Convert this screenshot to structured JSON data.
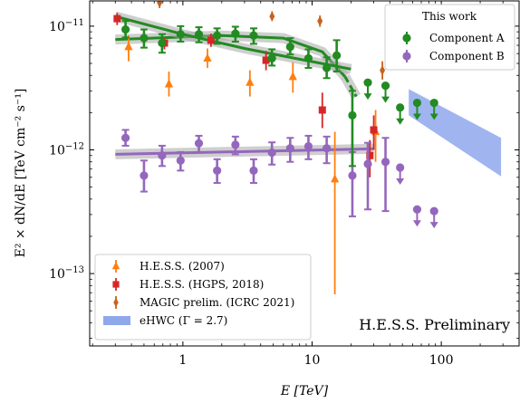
{
  "chart_data": {
    "type": "scatter",
    "xlabel": "E [TeV]",
    "ylabel": "E² × dN/dE [TeV cm⁻² s⁻¹]",
    "x_scale": "log",
    "y_scale": "log",
    "xlim": [
      0.19,
      400
    ],
    "ylim": [
      2.6e-14,
      1.6e-11
    ],
    "x_ticks": [
      {
        "v": 1,
        "label": "1"
      },
      {
        "v": 10,
        "label": "10"
      },
      {
        "v": 100,
        "label": "100"
      }
    ],
    "y_ticks": [
      {
        "v": 1e-13,
        "base": "10",
        "exp": "−13"
      },
      {
        "v": 1e-12,
        "base": "10",
        "exp": "−12"
      },
      {
        "v": 1e-11,
        "base": "10",
        "exp": "−11"
      }
    ],
    "annotation": "H.E.S.S. Preliminary",
    "legend_top": {
      "title": "This work",
      "placement": "top-right",
      "entries": [
        {
          "label": "Component A",
          "color": "#228b22",
          "marker": "circle"
        },
        {
          "label": "Component B",
          "color": "#9467bd",
          "marker": "circle"
        }
      ]
    },
    "legend_bottom": {
      "placement": "lower-left",
      "entries": [
        {
          "label": "H.E.S.S. (2007)",
          "color": "#ff7f0e",
          "marker": "triangle"
        },
        {
          "label": "H.E.S.S. (HGPS, 2018)",
          "color": "#d62728",
          "marker": "square"
        },
        {
          "label": "MAGIC prelim. (ICRC 2021)",
          "color": "#c8621c",
          "marker": "diamond"
        },
        {
          "label": "eHWC (Γ = 2.7)",
          "color": "#8fa8ec",
          "marker": "band"
        }
      ]
    },
    "series": [
      {
        "name": "Component A",
        "color": "#228b22",
        "marker": "circle",
        "points": [
          {
            "x": 0.36,
            "y": 9.4e-12,
            "lo": 8.1e-12,
            "hi": 1.1e-11
          },
          {
            "x": 0.5,
            "y": 8e-12,
            "lo": 6.7e-12,
            "hi": 9.4e-12
          },
          {
            "x": 0.69,
            "y": 7.3e-12,
            "lo": 6.1e-12,
            "hi": 8.6e-12
          },
          {
            "x": 0.96,
            "y": 8.6e-12,
            "lo": 7.5e-12,
            "hi": 1e-11
          },
          {
            "x": 1.33,
            "y": 8.6e-12,
            "lo": 7.4e-12,
            "hi": 9.8e-12
          },
          {
            "x": 1.84,
            "y": 8.4e-12,
            "lo": 7.2e-12,
            "hi": 9.6e-12
          },
          {
            "x": 2.55,
            "y": 8.7e-12,
            "lo": 7.5e-12,
            "hi": 9.9e-12
          },
          {
            "x": 3.53,
            "y": 8.4e-12,
            "lo": 7.2e-12,
            "hi": 9.6e-12
          },
          {
            "x": 4.89,
            "y": 5.5e-12,
            "lo": 4.8e-12,
            "hi": 6.5e-12
          },
          {
            "x": 6.77,
            "y": 6.8e-12,
            "lo": 5.9e-12,
            "hi": 8e-12
          },
          {
            "x": 9.37,
            "y": 5.5e-12,
            "lo": 4.6e-12,
            "hi": 6.5e-12
          },
          {
            "x": 12.97,
            "y": 4.6e-12,
            "lo": 3.8e-12,
            "hi": 5.6e-12
          },
          {
            "x": 15.5,
            "y": 5.8e-12,
            "lo": 4.3e-12,
            "hi": 7.7e-12
          },
          {
            "x": 20.5,
            "y": 1.9e-12,
            "lo": 7.4e-13,
            "hi": 3e-12
          }
        ],
        "upper_limits": [
          {
            "x": 27.0,
            "y": 3.5e-12
          },
          {
            "x": 37.0,
            "y": 3.3e-12
          },
          {
            "x": 48.0,
            "y": 2.2e-12
          },
          {
            "x": 65.0,
            "y": 2.4e-12
          },
          {
            "x": 88.0,
            "y": 2.4e-12
          }
        ],
        "fits": [
          {
            "x": [
              0.3,
              2,
              6,
              12,
              18
            ],
            "y": [
              7.8e-12,
              8.4e-12,
              8e-12,
              6.2e-12,
              3.9e-12
            ],
            "dashed": false
          },
          {
            "x": [
              18,
              22
            ],
            "y": [
              3.9e-12,
              2.7e-12
            ],
            "dashed": true
          },
          {
            "x": [
              0.3,
              1,
              3,
              8,
              20
            ],
            "y": [
              1.2e-11,
              8.6e-12,
              6.6e-12,
              5.4e-12,
              4.5e-12
            ],
            "dashed": false
          }
        ]
      },
      {
        "name": "Component B",
        "color": "#9467bd",
        "marker": "circle",
        "points": [
          {
            "x": 0.36,
            "y": 1.25e-12,
            "lo": 1.08e-12,
            "hi": 1.45e-12
          },
          {
            "x": 0.5,
            "y": 6.2e-13,
            "lo": 4.6e-13,
            "hi": 8.2e-13
          },
          {
            "x": 0.69,
            "y": 9e-13,
            "lo": 7.4e-13,
            "hi": 1.08e-12
          },
          {
            "x": 0.96,
            "y": 8.2e-13,
            "lo": 6.8e-13,
            "hi": 9.6e-13
          },
          {
            "x": 1.33,
            "y": 1.13e-12,
            "lo": 9.6e-13,
            "hi": 1.3e-12
          },
          {
            "x": 1.84,
            "y": 6.8e-13,
            "lo": 5.4e-13,
            "hi": 8.4e-13
          },
          {
            "x": 2.55,
            "y": 1.1e-12,
            "lo": 9.2e-13,
            "hi": 1.28e-12
          },
          {
            "x": 3.53,
            "y": 6.8e-13,
            "lo": 5.4e-13,
            "hi": 8.4e-13
          },
          {
            "x": 4.89,
            "y": 9.5e-13,
            "lo": 7.6e-13,
            "hi": 1.15e-12
          },
          {
            "x": 6.77,
            "y": 1.03e-12,
            "lo": 8e-13,
            "hi": 1.25e-12
          },
          {
            "x": 9.37,
            "y": 1.07e-12,
            "lo": 8.4e-13,
            "hi": 1.3e-12
          },
          {
            "x": 12.97,
            "y": 1.03e-12,
            "lo": 7.8e-13,
            "hi": 1.28e-12
          },
          {
            "x": 20.5,
            "y": 6.2e-13,
            "lo": 2.9e-13,
            "hi": 9.6e-13
          },
          {
            "x": 27.0,
            "y": 7.7e-13,
            "lo": 3.3e-13,
            "hi": 1.14e-12
          },
          {
            "x": 37.0,
            "y": 8e-13,
            "lo": 3.2e-13,
            "hi": 1.25e-12
          }
        ],
        "upper_limits": [
          {
            "x": 48.0,
            "y": 7.2e-13
          },
          {
            "x": 65.0,
            "y": 3.3e-13
          },
          {
            "x": 88.0,
            "y": 3.2e-13
          }
        ],
        "fits": [
          {
            "x": [
              0.3,
              30
            ],
            "y": [
              9.2e-13,
              1.02e-12
            ],
            "dashed": false
          }
        ]
      },
      {
        "name": "H.E.S.S. (2007)",
        "color": "#ff7f0e",
        "marker": "triangle",
        "points": [
          {
            "x": 0.38,
            "y": 6.8e-12,
            "lo": 5.2e-12,
            "hi": 8.4e-12
          },
          {
            "x": 0.78,
            "y": 3.4e-12,
            "lo": 2.7e-12,
            "hi": 4.3e-12
          },
          {
            "x": 1.55,
            "y": 5.5e-12,
            "lo": 4.6e-12,
            "hi": 6.6e-12
          },
          {
            "x": 3.3,
            "y": 3.5e-12,
            "lo": 2.7e-12,
            "hi": 4.4e-12
          },
          {
            "x": 7.1,
            "y": 3.9e-12,
            "lo": 2.9e-12,
            "hi": 5.1e-12
          },
          {
            "x": 15.0,
            "y": 5.8e-13,
            "lo": 6.8e-14,
            "hi": 1.4e-12
          },
          {
            "x": 31.0,
            "y": 1.4e-12,
            "lo": 8e-13,
            "hi": 2.1e-12
          }
        ]
      },
      {
        "name": "H.E.S.S. (HGPS, 2018)",
        "color": "#d62728",
        "marker": "square",
        "points": [
          {
            "x": 0.31,
            "y": 1.15e-11,
            "lo": 1.02e-11,
            "hi": 1.28e-11
          },
          {
            "x": 0.72,
            "y": 7.3e-12,
            "lo": 6.5e-12,
            "hi": 8.1e-12
          },
          {
            "x": 1.65,
            "y": 7.7e-12,
            "lo": 6.8e-12,
            "hi": 8.7e-12
          },
          {
            "x": 4.4,
            "y": 5.3e-12,
            "lo": 4.4e-12,
            "hi": 6.3e-12
          },
          {
            "x": 12.0,
            "y": 2.1e-12,
            "lo": 1.5e-12,
            "hi": 2.9e-12
          },
          {
            "x": 28.0,
            "y": 9e-13,
            "lo": 6e-13,
            "hi": 1.2e-12
          },
          {
            "x": 30.0,
            "y": 1.45e-12,
            "lo": 1e-12,
            "hi": 1.9e-12
          }
        ]
      },
      {
        "name": "MAGIC prelim. (ICRC 2021)",
        "color": "#c8621c",
        "marker": "diamond",
        "points": [
          {
            "x": 0.66,
            "y": 1.55e-11,
            "lo": 1.4e-11,
            "hi": 1.7e-11
          },
          {
            "x": 4.9,
            "y": 1.2e-11,
            "lo": 1.1e-11,
            "hi": 1.32e-11
          },
          {
            "x": 11.5,
            "y": 1.1e-11,
            "lo": 9.9e-12,
            "hi": 1.22e-11
          },
          {
            "x": 35.0,
            "y": 4.4e-12,
            "lo": 3.7e-12,
            "hi": 5.2e-12
          }
        ]
      },
      {
        "name": "eHWC (Γ = 2.7)",
        "color": "#8fa8ec",
        "marker": "band",
        "band": {
          "x": [
            56,
            290
          ],
          "y_upper": [
            3.1e-12,
            1.25e-12
          ],
          "y_lower": [
            1.9e-12,
            6.1e-13
          ]
        }
      }
    ]
  }
}
